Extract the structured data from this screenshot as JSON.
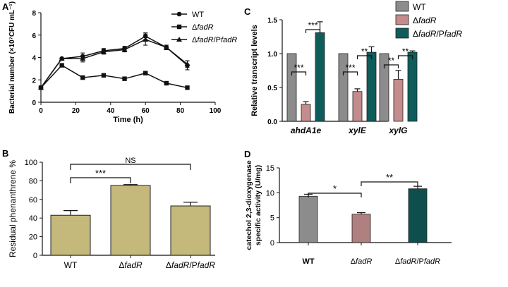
{
  "chart_data": [
    {
      "panel": "A",
      "type": "line",
      "xlabel": "Time (h)",
      "ylabel": "Bacterial number (×10⁷CFU mL⁻¹)",
      "xlim": [
        0,
        100
      ],
      "ylim": [
        0,
        8
      ],
      "x_ticks": [
        "0",
        "20",
        "40",
        "60",
        "80",
        "100"
      ],
      "y_ticks": [
        "0",
        "2",
        "4",
        "6",
        "8"
      ],
      "legend_position": "top-right",
      "series": [
        {
          "name": "WT",
          "marker": "circle",
          "x": [
            0,
            12,
            24,
            36,
            48,
            60,
            72,
            84
          ],
          "y": [
            1.3,
            3.9,
            4.1,
            4.6,
            4.8,
            5.9,
            4.9,
            3.3
          ],
          "err": [
            0.1,
            0.1,
            0.3,
            0.2,
            0.2,
            0.3,
            0.2,
            0.4
          ]
        },
        {
          "name": "ΔfadR",
          "marker": "square",
          "x": [
            0,
            12,
            24,
            36,
            48,
            60,
            72,
            84
          ],
          "y": [
            1.3,
            3.3,
            2.2,
            2.4,
            2.1,
            2.6,
            1.7,
            1.3
          ],
          "err": [
            0.1,
            0.1,
            0.1,
            0.1,
            0.1,
            0.1,
            0.1,
            0.1
          ]
        },
        {
          "name": "ΔfadR/PfadR",
          "marker": "triangle",
          "x": [
            0,
            12,
            24,
            36,
            48,
            60,
            72,
            84
          ],
          "y": [
            1.3,
            3.9,
            3.9,
            4.5,
            4.7,
            5.6,
            4.9,
            3.4
          ],
          "err": [
            0.1,
            0.1,
            0.3,
            0.2,
            0.2,
            0.5,
            0.2,
            0.3
          ]
        }
      ]
    },
    {
      "panel": "B",
      "type": "bar",
      "ylabel": "Residual phenanthrene %",
      "ylim": [
        0,
        100
      ],
      "y_ticks": [
        "0",
        "20",
        "40",
        "60",
        "80",
        "100"
      ],
      "categories": [
        "WT",
        "ΔfadR",
        "ΔfadR/PfadR"
      ],
      "values": [
        43,
        75,
        53
      ],
      "err": [
        5,
        1,
        4
      ],
      "color": "#c4b97a",
      "annotations": [
        {
          "from": 0,
          "to": 1,
          "label": "***"
        },
        {
          "from": 0,
          "to": 2,
          "label": "NS"
        }
      ]
    },
    {
      "panel": "C",
      "type": "bar",
      "ylabel": "Relative transcript levels",
      "ylim": [
        0,
        1.5
      ],
      "y_ticks": [
        "0.0",
        "0.5",
        "1.0",
        "1.5"
      ],
      "categories": [
        "ahdA1e",
        "xylE",
        "xylG"
      ],
      "legend_position": "top-right",
      "series": [
        {
          "name": "WT",
          "color": "#8c8c8c",
          "values": [
            1.0,
            1.0,
            1.0
          ],
          "err": [
            0,
            0,
            0
          ]
        },
        {
          "name": "ΔfadR",
          "color": "#c48c8c",
          "values": [
            0.25,
            0.44,
            0.62
          ],
          "err": [
            0.04,
            0.04,
            0.13
          ]
        },
        {
          "name": "ΔfadR/PfadR",
          "color": "#0e5d5a",
          "values": [
            1.31,
            1.02,
            1.02
          ],
          "err": [
            0.16,
            0.08,
            0.02
          ]
        }
      ],
      "annotations": [
        {
          "group": 0,
          "from": 0,
          "to": 1,
          "label": "***"
        },
        {
          "group": 0,
          "from": 1,
          "to": 2,
          "label": "***"
        },
        {
          "group": 1,
          "from": 0,
          "to": 1,
          "label": "***"
        },
        {
          "group": 1,
          "from": 1,
          "to": 2,
          "label": "**"
        },
        {
          "group": 2,
          "from": 0,
          "to": 1,
          "label": "**"
        },
        {
          "group": 2,
          "from": 1,
          "to": 2,
          "label": "**"
        }
      ]
    },
    {
      "panel": "D",
      "type": "bar",
      "ylabel": "catechol 2,3-dioxygenase specific activity (U/mg)",
      "ylim": [
        0,
        15
      ],
      "y_ticks": [
        "0",
        "5",
        "10",
        "15"
      ],
      "categories": [
        "WT",
        "ΔfadR",
        "ΔfadR/PfadR"
      ],
      "values": [
        9.3,
        5.7,
        10.8
      ],
      "err": [
        0.4,
        0.3,
        0.5
      ],
      "colors": [
        "#8c8c8c",
        "#b08080",
        "#0e4f4e"
      ],
      "annotations": [
        {
          "from": 0,
          "to": 1,
          "label": "*"
        },
        {
          "from": 1,
          "to": 2,
          "label": "**"
        }
      ]
    }
  ]
}
